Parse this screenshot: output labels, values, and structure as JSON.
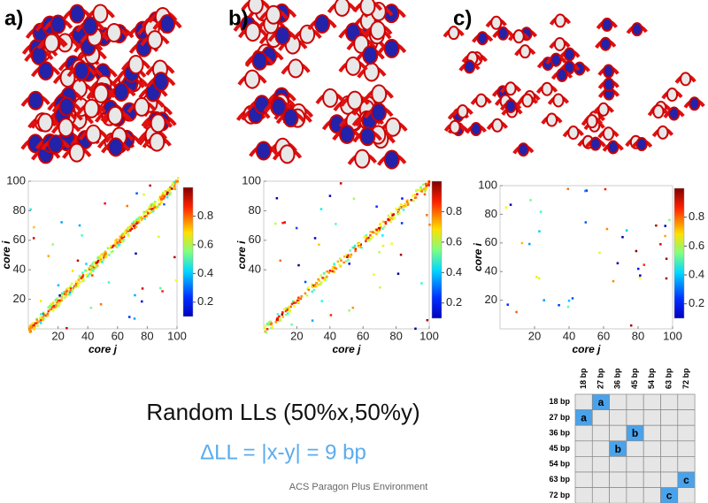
{
  "panels": [
    {
      "label": "a)",
      "map": {
        "xlabel": "core j",
        "ylabel": "core i",
        "xlim": [
          0,
          100
        ],
        "ylim": [
          0,
          100
        ],
        "xticks": [
          20,
          40,
          60,
          80,
          100
        ],
        "yticks": [
          20,
          40,
          60,
          80,
          100
        ],
        "clim": [
          0.1,
          1
        ],
        "cticks": [
          0.2,
          0.4,
          0.6,
          0.8
        ]
      }
    },
    {
      "label": "b)",
      "map": {
        "xlabel": "core j",
        "ylabel": "core i",
        "xlim": [
          0,
          100
        ],
        "ylim": [
          0,
          100
        ],
        "xticks": [
          20,
          40,
          60,
          80,
          100
        ],
        "yticks": [
          40,
          60,
          80,
          100
        ],
        "clim": [
          0.1,
          1
        ],
        "cticks": [
          0.2,
          0.4,
          0.6,
          0.8
        ]
      }
    },
    {
      "label": "c)",
      "map": {
        "xlabel": "core j",
        "ylabel": "core i",
        "xlim": [
          0,
          100
        ],
        "ylim": [
          0,
          100
        ],
        "xticks": [
          20,
          40,
          60,
          80,
          100
        ],
        "yticks": [
          20,
          40,
          60,
          80,
          100
        ],
        "clim": [
          0.1,
          1
        ],
        "cticks": [
          0.2,
          0.4,
          0.6,
          0.8
        ]
      }
    }
  ],
  "caption": {
    "title": "Random LLs (50%x,50%y)",
    "subtitle": "ΔLL = |x-y| = 9 bp"
  },
  "footer": "ACS Paragon Plus Environment",
  "table": {
    "columns": [
      "18 bp",
      "27 bp",
      "36 bp",
      "45 bp",
      "54 bp",
      "63 bp",
      "72 bp"
    ],
    "rows": [
      {
        "label": "18 bp",
        "cells": [
          null,
          "a",
          null,
          null,
          null,
          null,
          null
        ]
      },
      {
        "label": "27 bp",
        "cells": [
          "a",
          null,
          null,
          null,
          null,
          null,
          null
        ]
      },
      {
        "label": "36 bp",
        "cells": [
          null,
          null,
          null,
          "b",
          null,
          null,
          null
        ]
      },
      {
        "label": "45 bp",
        "cells": [
          null,
          null,
          "b",
          null,
          null,
          null,
          null
        ]
      },
      {
        "label": "54 bp",
        "cells": [
          null,
          null,
          null,
          null,
          null,
          null,
          null
        ]
      },
      {
        "label": "63 bp",
        "cells": [
          null,
          null,
          null,
          null,
          null,
          null,
          "c"
        ]
      },
      {
        "label": "72 bp",
        "cells": [
          null,
          null,
          null,
          null,
          null,
          "c",
          null
        ]
      }
    ]
  }
}
